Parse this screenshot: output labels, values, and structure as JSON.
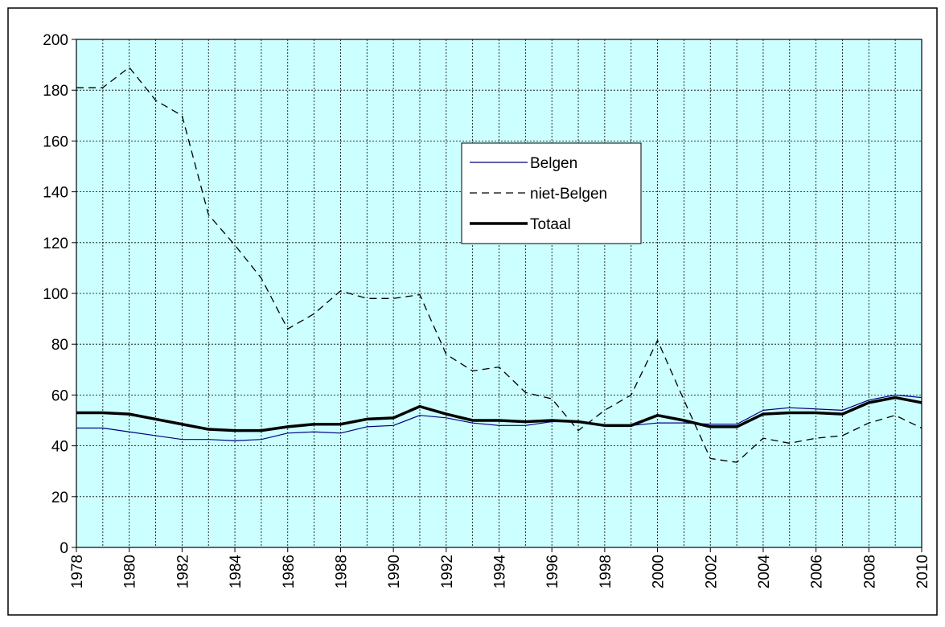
{
  "chart_data": {
    "type": "line",
    "x": [
      1978,
      1979,
      1980,
      1981,
      1982,
      1983,
      1984,
      1985,
      1986,
      1987,
      1988,
      1989,
      1990,
      1991,
      1992,
      1993,
      1994,
      1995,
      1996,
      1997,
      1998,
      1999,
      2000,
      2001,
      2002,
      2003,
      2004,
      2005,
      2006,
      2007,
      2008,
      2009,
      2010
    ],
    "series": [
      {
        "name": "Belgen",
        "color": "#000080",
        "linewidth": 1.2,
        "dashed": false,
        "values": [
          47,
          47,
          45.5,
          44,
          42.5,
          42.5,
          42,
          42.5,
          45,
          45.5,
          45,
          47.5,
          48,
          52,
          51,
          49,
          48,
          48,
          49.5,
          49.5,
          48,
          48,
          49,
          49,
          48.5,
          48.5,
          54,
          55,
          54.5,
          54,
          58,
          60,
          59
        ]
      },
      {
        "name": "niet-Belgen",
        "color": "#000000",
        "linewidth": 1.3,
        "dashed": true,
        "values": [
          181,
          181,
          189,
          176,
          170,
          131,
          119,
          106,
          86,
          92,
          101,
          98,
          98,
          99.5,
          76,
          69.5,
          71,
          61,
          58.5,
          46,
          54,
          60,
          81.5,
          58,
          35,
          33.5,
          43,
          41,
          43,
          44,
          49,
          52,
          47
        ]
      },
      {
        "name": "Totaal",
        "color": "#000000",
        "linewidth": 3.5,
        "dashed": false,
        "values": [
          53,
          53,
          52.5,
          50.5,
          48.5,
          46.5,
          46,
          46,
          47.5,
          48.5,
          48.5,
          50.5,
          51,
          55.5,
          52.5,
          50,
          50,
          49.5,
          50,
          49.5,
          48,
          48,
          52,
          50,
          47.5,
          47.5,
          52.5,
          53,
          53,
          52.5,
          57,
          59,
          57
        ]
      }
    ],
    "xlim": [
      1978,
      2010
    ],
    "xticks": [
      1978,
      1980,
      1982,
      1984,
      1986,
      1988,
      1990,
      1992,
      1994,
      1996,
      1998,
      2000,
      2002,
      2004,
      2006,
      2008,
      2010
    ],
    "ylim": [
      0,
      200
    ],
    "yticks": [
      0,
      20,
      40,
      60,
      80,
      100,
      120,
      140,
      160,
      180,
      200
    ],
    "grid": true,
    "legend": "upper center",
    "background": "#ccffff"
  }
}
